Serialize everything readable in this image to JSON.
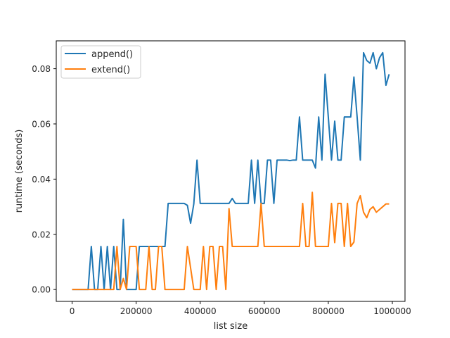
{
  "chart_data": {
    "type": "line",
    "title": "",
    "xlabel": "list size",
    "ylabel": "runtime (seconds)",
    "xlim": [
      -49500,
      1039500
    ],
    "ylim": [
      -0.0043,
      0.0901
    ],
    "xticks": [
      0,
      200000,
      400000,
      600000,
      800000,
      1000000
    ],
    "xtick_labels": [
      "0",
      "200000",
      "400000",
      "600000",
      "800000",
      "1000000"
    ],
    "yticks": [
      0.0,
      0.02,
      0.04,
      0.06,
      0.08
    ],
    "ytick_labels": [
      "0.00",
      "0.02",
      "0.04",
      "0.06",
      "0.08"
    ],
    "grid": false,
    "legend_position": "upper left",
    "x": [
      0,
      10000,
      20000,
      30000,
      40000,
      50000,
      60000,
      70000,
      80000,
      90000,
      100000,
      110000,
      120000,
      130000,
      140000,
      150000,
      160000,
      170000,
      180000,
      190000,
      200000,
      210000,
      220000,
      230000,
      240000,
      250000,
      260000,
      270000,
      280000,
      290000,
      300000,
      310000,
      320000,
      330000,
      340000,
      350000,
      360000,
      370000,
      380000,
      390000,
      400000,
      410000,
      420000,
      430000,
      440000,
      450000,
      460000,
      470000,
      480000,
      490000,
      500000,
      510000,
      520000,
      530000,
      540000,
      550000,
      560000,
      570000,
      580000,
      590000,
      600000,
      610000,
      620000,
      630000,
      640000,
      650000,
      660000,
      670000,
      680000,
      690000,
      700000,
      710000,
      720000,
      730000,
      740000,
      750000,
      760000,
      770000,
      780000,
      790000,
      800000,
      810000,
      820000,
      830000,
      840000,
      850000,
      860000,
      870000,
      880000,
      890000,
      900000,
      910000,
      920000,
      930000,
      940000,
      950000,
      960000,
      970000,
      980000,
      990000
    ],
    "series": [
      {
        "name": "append()",
        "color": "#1f77b4",
        "values": [
          0,
          0,
          0,
          0,
          0,
          0,
          0.0156,
          0,
          0,
          0.0156,
          0,
          0.0156,
          0,
          0.0156,
          0,
          0,
          0.0254,
          0,
          0,
          0,
          0,
          0.0156,
          0.0156,
          0.0156,
          0.0156,
          0.0156,
          0.0156,
          0.0156,
          0.0156,
          0.0156,
          0.0312,
          0.0312,
          0.0312,
          0.0312,
          0.0312,
          0.0312,
          0.0305,
          0.024,
          0.031,
          0.0469,
          0.0312,
          0.0312,
          0.0312,
          0.0312,
          0.0312,
          0.0312,
          0.0312,
          0.0312,
          0.0312,
          0.0312,
          0.033,
          0.0312,
          0.0312,
          0.0312,
          0.0312,
          0.0312,
          0.0469,
          0.0312,
          0.0469,
          0.0312,
          0.0312,
          0.0469,
          0.0469,
          0.0312,
          0.0469,
          0.0469,
          0.0469,
          0.0469,
          0.0467,
          0.0469,
          0.0469,
          0.0625,
          0.0469,
          0.0469,
          0.0469,
          0.0469,
          0.044,
          0.0625,
          0.0469,
          0.078,
          0.0625,
          0.0469,
          0.061,
          0.0469,
          0.0469,
          0.0625,
          0.0625,
          0.0625,
          0.077,
          0.0625,
          0.0469,
          0.0858,
          0.083,
          0.082,
          0.0858,
          0.08,
          0.084,
          0.0858,
          0.074,
          0.078
        ]
      },
      {
        "name": "extend()",
        "color": "#ff7f0e",
        "values": [
          0,
          0,
          0,
          0,
          0,
          0,
          0,
          0,
          0,
          0,
          0,
          0,
          0,
          0,
          0.0156,
          0,
          0.004,
          0,
          0.0156,
          0.0156,
          0.0156,
          0,
          0,
          0,
          0.0156,
          0,
          0,
          0.0156,
          0.0156,
          0,
          0,
          0,
          0,
          0,
          0,
          0,
          0.0156,
          0.0078,
          0,
          0,
          0,
          0.0156,
          0,
          0.0156,
          0.0156,
          0,
          0.0156,
          0.0156,
          0,
          0.0293,
          0.0156,
          0.0156,
          0.0156,
          0.0156,
          0.0156,
          0.0156,
          0.0156,
          0.0156,
          0.0156,
          0.0312,
          0.0156,
          0.0156,
          0.0156,
          0.0156,
          0.0156,
          0.0156,
          0.0156,
          0.0156,
          0.0156,
          0.0156,
          0.0156,
          0.0156,
          0.0312,
          0.0156,
          0.0156,
          0.0352,
          0.0156,
          0.0156,
          0.0156,
          0.0156,
          0.0156,
          0.0312,
          0.017,
          0.0312,
          0.0312,
          0.0156,
          0.0312,
          0.0156,
          0.0172,
          0.0312,
          0.034,
          0.028,
          0.026,
          0.029,
          0.03,
          0.028,
          0.029,
          0.03,
          0.031,
          0.031
        ]
      }
    ]
  }
}
